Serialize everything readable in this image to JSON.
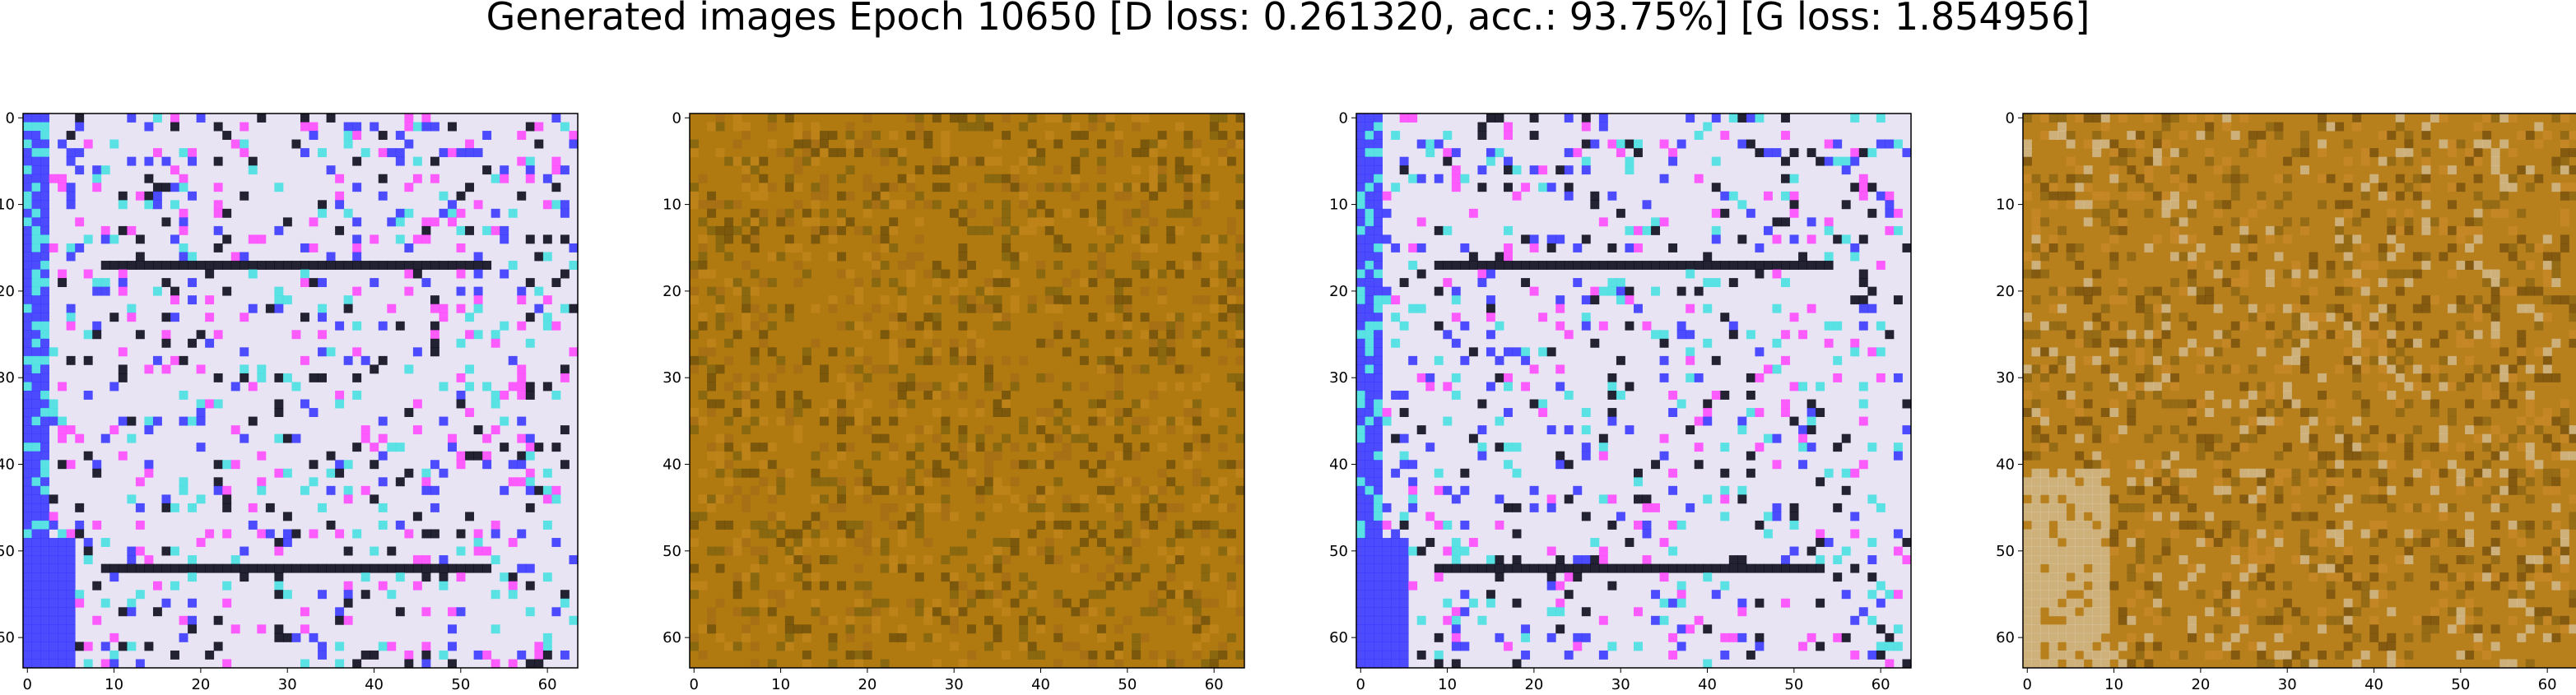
{
  "figure": {
    "title": "Generated images Epoch 10650 [D loss: 0.261320, acc.: 93.75%] [G loss: 1.854956]"
  },
  "panels": [
    {
      "id": "sample-1",
      "style": "white-blue-magenta",
      "palette": {
        "base": "#e8e4f4",
        "accent1": "#ff44ff",
        "accent2": "#3030ff",
        "accent3": "#40e0e0",
        "dark": "#000010"
      }
    },
    {
      "id": "sample-2",
      "style": "ochre",
      "palette": {
        "base": "#b07a10",
        "accent1": "#c88a20",
        "accent2": "#6a5a10",
        "accent3": "#a06818",
        "dark": "#503c08"
      }
    },
    {
      "id": "sample-3",
      "style": "white-blue-magenta",
      "palette": {
        "base": "#e8e4f4",
        "accent1": "#ff44ff",
        "accent2": "#3030ff",
        "accent3": "#40e0e0",
        "dark": "#000010"
      }
    },
    {
      "id": "sample-4",
      "style": "ochre-light",
      "palette": {
        "base": "#b8801c",
        "accent1": "#d08c30",
        "accent2": "#7a5a10",
        "accent3": "#e0d8c8",
        "dark": "#5a3a08"
      }
    }
  ],
  "axis": {
    "x_ticks": [
      "0",
      "10",
      "20",
      "30",
      "40",
      "50",
      "60"
    ],
    "y_ticks": [
      "0",
      "10",
      "20",
      "30",
      "40",
      "50",
      "60"
    ],
    "tick_values": [
      0,
      10,
      20,
      30,
      40,
      50,
      60
    ],
    "range": [
      -0.5,
      63.5
    ]
  }
}
